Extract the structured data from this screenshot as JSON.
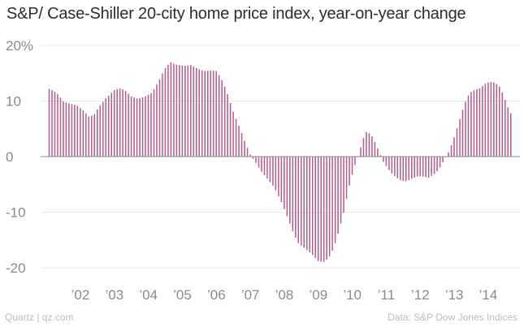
{
  "chart_data": {
    "type": "bar",
    "title": "S&P/ Case-Shiller 20-city home price index, year-on-year change",
    "source_left": "Quartz | qz.com",
    "source_right": "Data: S&P Dow Jones Indices",
    "xlabel": "",
    "ylabel": "",
    "ylim": [
      -21,
      21
    ],
    "y_ticks": [
      {
        "value": 20,
        "label": "20%"
      },
      {
        "value": 10,
        "label": "10"
      },
      {
        "value": 0,
        "label": "0"
      },
      {
        "value": -10,
        "label": "-10"
      },
      {
        "value": -20,
        "label": "-20"
      }
    ],
    "x_ticks": [
      {
        "value": 2002,
        "label": "’02"
      },
      {
        "value": 2003,
        "label": "’03"
      },
      {
        "value": 2004,
        "label": "’04"
      },
      {
        "value": 2005,
        "label": "’05"
      },
      {
        "value": 2006,
        "label": "’06"
      },
      {
        "value": 2007,
        "label": "’07"
      },
      {
        "value": 2008,
        "label": "’08"
      },
      {
        "value": 2009,
        "label": "’09"
      },
      {
        "value": 2010,
        "label": "’10"
      },
      {
        "value": 2011,
        "label": "’11"
      },
      {
        "value": 2012,
        "label": "’12"
      },
      {
        "value": 2013,
        "label": "’13"
      },
      {
        "value": 2014,
        "label": "’14"
      }
    ],
    "xlim": [
      2001.0,
      2015.0
    ],
    "bar_color": "#b35a8e",
    "grid": true,
    "anchors": [
      [
        2001.08,
        12.2
      ],
      [
        2001.3,
        11.5
      ],
      [
        2001.5,
        9.9
      ],
      [
        2001.7,
        9.5
      ],
      [
        2001.9,
        9.2
      ],
      [
        2002.1,
        8.2
      ],
      [
        2002.25,
        7.2
      ],
      [
        2002.4,
        7.5
      ],
      [
        2002.55,
        9.0
      ],
      [
        2002.75,
        10.5
      ],
      [
        2003.0,
        12.0
      ],
      [
        2003.15,
        12.3
      ],
      [
        2003.3,
        12.0
      ],
      [
        2003.5,
        10.8
      ],
      [
        2003.7,
        10.4
      ],
      [
        2003.9,
        10.8
      ],
      [
        2004.1,
        11.5
      ],
      [
        2004.3,
        13.5
      ],
      [
        2004.5,
        16.0
      ],
      [
        2004.65,
        17.0
      ],
      [
        2004.85,
        16.5
      ],
      [
        2005.1,
        16.3
      ],
      [
        2005.25,
        16.5
      ],
      [
        2005.45,
        15.8
      ],
      [
        2005.65,
        15.4
      ],
      [
        2005.85,
        15.5
      ],
      [
        2006.0,
        15.4
      ],
      [
        2006.15,
        14.0
      ],
      [
        2006.3,
        11.8
      ],
      [
        2006.5,
        8.0
      ],
      [
        2006.7,
        5.0
      ],
      [
        2006.85,
        2.5
      ],
      [
        2007.0,
        0.3
      ],
      [
        2007.15,
        -1.0
      ],
      [
        2007.3,
        -2.5
      ],
      [
        2007.5,
        -4.0
      ],
      [
        2007.7,
        -5.5
      ],
      [
        2007.9,
        -8.0
      ],
      [
        2008.1,
        -11.0
      ],
      [
        2008.25,
        -13.5
      ],
      [
        2008.4,
        -15.5
      ],
      [
        2008.6,
        -16.5
      ],
      [
        2008.8,
        -17.5
      ],
      [
        2009.0,
        -18.8
      ],
      [
        2009.15,
        -19.0
      ],
      [
        2009.3,
        -18.3
      ],
      [
        2009.45,
        -16.5
      ],
      [
        2009.6,
        -13.5
      ],
      [
        2009.75,
        -10.0
      ],
      [
        2009.9,
        -5.5
      ],
      [
        2010.05,
        -2.0
      ],
      [
        2010.2,
        0.5
      ],
      [
        2010.3,
        3.0
      ],
      [
        2010.42,
        4.5
      ],
      [
        2010.55,
        4.0
      ],
      [
        2010.65,
        2.8
      ],
      [
        2010.78,
        1.0
      ],
      [
        2010.9,
        -0.8
      ],
      [
        2011.05,
        -2.2
      ],
      [
        2011.2,
        -3.3
      ],
      [
        2011.4,
        -4.2
      ],
      [
        2011.55,
        -4.5
      ],
      [
        2011.75,
        -4.0
      ],
      [
        2011.95,
        -3.5
      ],
      [
        2012.1,
        -3.6
      ],
      [
        2012.25,
        -3.8
      ],
      [
        2012.4,
        -3.2
      ],
      [
        2012.55,
        -2.3
      ],
      [
        2012.7,
        -0.6
      ],
      [
        2012.85,
        1.0
      ],
      [
        2013.0,
        3.5
      ],
      [
        2013.15,
        6.5
      ],
      [
        2013.3,
        9.5
      ],
      [
        2013.45,
        11.5
      ],
      [
        2013.6,
        12.0
      ],
      [
        2013.75,
        12.3
      ],
      [
        2013.9,
        13.1
      ],
      [
        2014.05,
        13.5
      ],
      [
        2014.2,
        13.3
      ],
      [
        2014.35,
        12.5
      ],
      [
        2014.45,
        11.0
      ],
      [
        2014.55,
        9.3
      ],
      [
        2014.65,
        7.8
      ]
    ]
  }
}
